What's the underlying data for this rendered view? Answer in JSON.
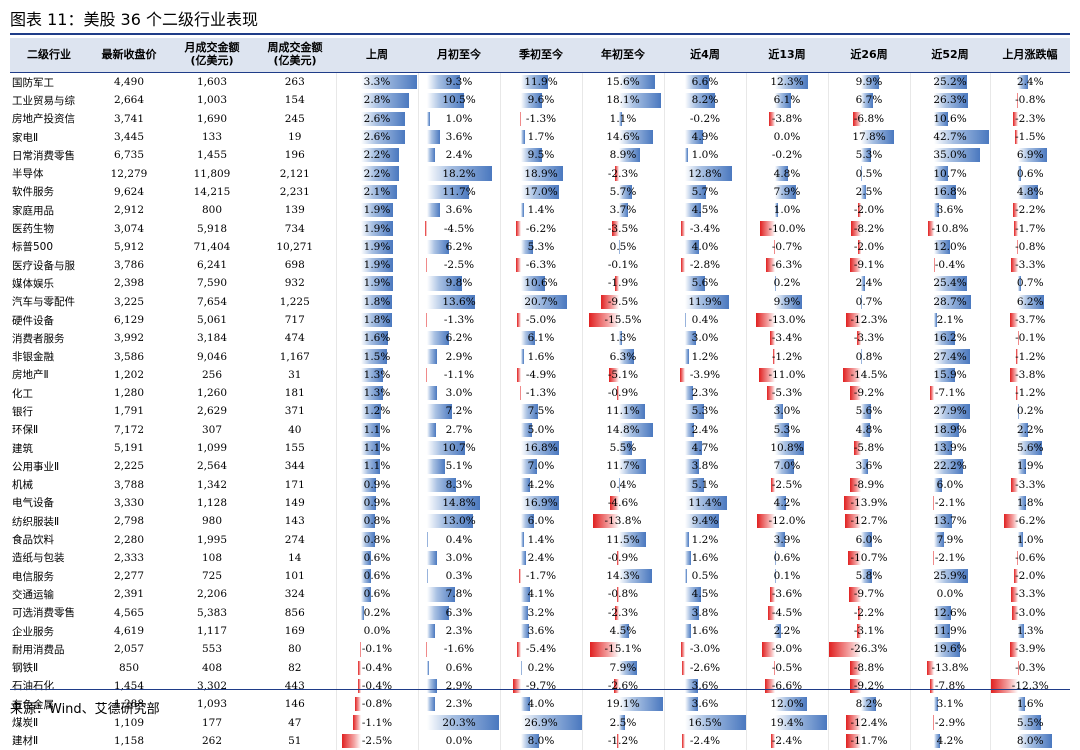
{
  "title": "图表 11：美股 36 个二级行业表现",
  "source": "来源：Wind、艾德研究部",
  "headers": [
    "二级行业",
    "最新收盘价",
    "月成交金额\n(亿美元)",
    "周成交金额\n(亿美元)",
    "上周",
    "月初至今",
    "季初至今",
    "年初至今",
    "近4周",
    "近13周",
    "近26周",
    "近52周",
    "上月涨跌幅"
  ],
  "colors": {
    "positive": "#4a78bf",
    "negative": "#e02020",
    "header_bg": "#dde4f0"
  },
  "rows": [
    {
      "name": "国防军工",
      "close": "4,490",
      "month_amt": "1,603",
      "week_amt": "263",
      "pct": [
        "3.3%",
        "9.3%",
        "11.9%",
        "15.6%",
        "6.6%",
        "12.3%",
        "9.9%",
        "25.2%",
        "2.4%"
      ]
    },
    {
      "name": "工业贸易与综",
      "close": "2,664",
      "month_amt": "1,003",
      "week_amt": "154",
      "pct": [
        "2.8%",
        "10.5%",
        "9.6%",
        "18.1%",
        "8.2%",
        "6.1%",
        "6.7%",
        "26.3%",
        "-0.8%"
      ]
    },
    {
      "name": "房地产投资信",
      "close": "3,741",
      "month_amt": "1,690",
      "week_amt": "245",
      "pct": [
        "2.6%",
        "1.0%",
        "-1.3%",
        "1.1%",
        "-0.2%",
        "-3.8%",
        "-6.8%",
        "10.6%",
        "-2.3%"
      ]
    },
    {
      "name": "家电Ⅱ",
      "close": "3,445",
      "month_amt": "133",
      "week_amt": "19",
      "pct": [
        "2.6%",
        "3.6%",
        "1.7%",
        "14.6%",
        "4.9%",
        "0.0%",
        "17.8%",
        "42.7%",
        "-1.5%"
      ]
    },
    {
      "name": "日常消费零售",
      "close": "6,735",
      "month_amt": "1,455",
      "week_amt": "196",
      "pct": [
        "2.2%",
        "2.4%",
        "9.5%",
        "8.9%",
        "1.0%",
        "-0.2%",
        "5.3%",
        "35.0%",
        "6.9%"
      ]
    },
    {
      "name": "半导体",
      "close": "12,279",
      "month_amt": "11,809",
      "week_amt": "2,121",
      "pct": [
        "2.2%",
        "18.2%",
        "18.9%",
        "-2.3%",
        "12.8%",
        "4.8%",
        "0.5%",
        "10.7%",
        "0.6%"
      ]
    },
    {
      "name": "软件服务",
      "close": "9,624",
      "month_amt": "14,215",
      "week_amt": "2,231",
      "pct": [
        "2.1%",
        "11.7%",
        "17.0%",
        "5.7%",
        "5.7%",
        "7.9%",
        "2.5%",
        "16.8%",
        "4.8%"
      ]
    },
    {
      "name": "家庭用品",
      "close": "2,912",
      "month_amt": "800",
      "week_amt": "139",
      "pct": [
        "1.9%",
        "3.6%",
        "1.4%",
        "3.7%",
        "4.5%",
        "1.0%",
        "-2.0%",
        "3.6%",
        "-2.2%"
      ]
    },
    {
      "name": "医药生物",
      "close": "3,074",
      "month_amt": "5,918",
      "week_amt": "734",
      "pct": [
        "1.9%",
        "-4.5%",
        "-6.2%",
        "-3.5%",
        "-3.4%",
        "-10.0%",
        "-8.2%",
        "-10.8%",
        "-1.7%"
      ]
    },
    {
      "name": "标普500",
      "close": "5,912",
      "month_amt": "71,404",
      "week_amt": "10,271",
      "pct": [
        "1.9%",
        "6.2%",
        "5.3%",
        "0.5%",
        "4.0%",
        "-0.7%",
        "-2.0%",
        "12.0%",
        "-0.8%"
      ]
    },
    {
      "name": "医疗设备与服",
      "close": "3,786",
      "month_amt": "6,241",
      "week_amt": "698",
      "pct": [
        "1.9%",
        "-2.5%",
        "-6.3%",
        "-0.1%",
        "-2.8%",
        "-6.3%",
        "-9.1%",
        "-0.4%",
        "-3.3%"
      ]
    },
    {
      "name": "媒体娱乐",
      "close": "2,398",
      "month_amt": "7,590",
      "week_amt": "932",
      "pct": [
        "1.9%",
        "9.8%",
        "10.6%",
        "-1.9%",
        "5.6%",
        "0.2%",
        "2.4%",
        "25.4%",
        "0.7%"
      ]
    },
    {
      "name": "汽车与零配件",
      "close": "3,225",
      "month_amt": "7,654",
      "week_amt": "1,225",
      "pct": [
        "1.8%",
        "13.6%",
        "20.7%",
        "-9.5%",
        "11.9%",
        "9.9%",
        "0.7%",
        "28.7%",
        "6.2%"
      ]
    },
    {
      "name": "硬件设备",
      "close": "6,129",
      "month_amt": "5,061",
      "week_amt": "717",
      "pct": [
        "1.8%",
        "-1.3%",
        "-5.0%",
        "-15.5%",
        "0.4%",
        "-13.0%",
        "-12.3%",
        "2.1%",
        "-3.7%"
      ]
    },
    {
      "name": "消费者服务",
      "close": "3,992",
      "month_amt": "3,184",
      "week_amt": "474",
      "pct": [
        "1.6%",
        "6.2%",
        "6.1%",
        "1.3%",
        "3.0%",
        "-3.4%",
        "-3.3%",
        "16.2%",
        "-0.1%"
      ]
    },
    {
      "name": "非银金融",
      "close": "3,586",
      "month_amt": "9,046",
      "week_amt": "1,167",
      "pct": [
        "1.5%",
        "2.9%",
        "1.6%",
        "6.3%",
        "1.2%",
        "-1.2%",
        "0.8%",
        "27.4%",
        "-1.2%"
      ]
    },
    {
      "name": "房地产Ⅱ",
      "close": "1,202",
      "month_amt": "256",
      "week_amt": "31",
      "pct": [
        "1.3%",
        "-1.1%",
        "-4.9%",
        "-5.1%",
        "-3.9%",
        "-11.0%",
        "-14.5%",
        "15.9%",
        "-3.8%"
      ]
    },
    {
      "name": "化工",
      "close": "1,280",
      "month_amt": "1,260",
      "week_amt": "181",
      "pct": [
        "1.3%",
        "3.0%",
        "-1.3%",
        "-0.9%",
        "2.3%",
        "-5.3%",
        "-9.2%",
        "-7.1%",
        "-1.2%"
      ]
    },
    {
      "name": "银行",
      "close": "1,791",
      "month_amt": "2,629",
      "week_amt": "371",
      "pct": [
        "1.2%",
        "7.2%",
        "7.5%",
        "11.1%",
        "5.3%",
        "3.0%",
        "5.6%",
        "27.9%",
        "0.2%"
      ]
    },
    {
      "name": "环保Ⅱ",
      "close": "7,172",
      "month_amt": "307",
      "week_amt": "40",
      "pct": [
        "1.1%",
        "2.7%",
        "5.0%",
        "14.8%",
        "2.4%",
        "5.3%",
        "4.8%",
        "18.9%",
        "2.2%"
      ]
    },
    {
      "name": "建筑",
      "close": "5,191",
      "month_amt": "1,099",
      "week_amt": "155",
      "pct": [
        "1.1%",
        "10.7%",
        "16.8%",
        "5.5%",
        "4.7%",
        "10.8%",
        "-5.8%",
        "13.9%",
        "5.6%"
      ]
    },
    {
      "name": "公用事业Ⅱ",
      "close": "2,225",
      "month_amt": "2,564",
      "week_amt": "344",
      "pct": [
        "1.1%",
        "5.1%",
        "7.0%",
        "11.7%",
        "3.8%",
        "7.0%",
        "3.6%",
        "22.2%",
        "1.9%"
      ]
    },
    {
      "name": "机械",
      "close": "3,788",
      "month_amt": "1,342",
      "week_amt": "171",
      "pct": [
        "0.9%",
        "8.3%",
        "4.2%",
        "0.4%",
        "5.1%",
        "-2.5%",
        "-8.9%",
        "6.0%",
        "-3.3%"
      ]
    },
    {
      "name": "电气设备",
      "close": "3,330",
      "month_amt": "1,128",
      "week_amt": "149",
      "pct": [
        "0.9%",
        "14.8%",
        "16.9%",
        "-4.6%",
        "11.4%",
        "4.2%",
        "-13.9%",
        "-2.1%",
        "1.8%"
      ]
    },
    {
      "name": "纺织服装Ⅱ",
      "close": "2,798",
      "month_amt": "980",
      "week_amt": "143",
      "pct": [
        "0.8%",
        "13.0%",
        "6.0%",
        "-13.8%",
        "9.4%",
        "-12.0%",
        "-12.7%",
        "13.7%",
        "-6.2%"
      ]
    },
    {
      "name": "食品饮料",
      "close": "2,280",
      "month_amt": "1,995",
      "week_amt": "274",
      "pct": [
        "0.8%",
        "0.4%",
        "1.4%",
        "11.5%",
        "1.2%",
        "3.9%",
        "6.0%",
        "7.9%",
        "1.0%"
      ]
    },
    {
      "name": "造纸与包装",
      "close": "2,333",
      "month_amt": "108",
      "week_amt": "14",
      "pct": [
        "0.6%",
        "3.0%",
        "2.4%",
        "-0.9%",
        "1.6%",
        "0.6%",
        "-10.7%",
        "-2.1%",
        "-0.6%"
      ]
    },
    {
      "name": "电信服务",
      "close": "2,277",
      "month_amt": "725",
      "week_amt": "101",
      "pct": [
        "0.6%",
        "0.3%",
        "-1.7%",
        "14.3%",
        "0.5%",
        "0.1%",
        "5.8%",
        "25.9%",
        "-2.0%"
      ]
    },
    {
      "name": "交通运输",
      "close": "2,391",
      "month_amt": "2,206",
      "week_amt": "324",
      "pct": [
        "0.6%",
        "7.8%",
        "4.1%",
        "-0.8%",
        "4.5%",
        "-3.6%",
        "-9.7%",
        "0.0%",
        "-3.3%"
      ]
    },
    {
      "name": "可选消费零售",
      "close": "4,565",
      "month_amt": "5,383",
      "week_amt": "856",
      "pct": [
        "0.2%",
        "6.3%",
        "3.2%",
        "-2.3%",
        "3.8%",
        "-4.5%",
        "-2.2%",
        "12.6%",
        "-3.0%"
      ]
    },
    {
      "name": "企业服务",
      "close": "4,619",
      "month_amt": "1,117",
      "week_amt": "169",
      "pct": [
        "0.0%",
        "2.3%",
        "3.6%",
        "4.5%",
        "1.6%",
        "2.2%",
        "-3.1%",
        "11.9%",
        "1.3%"
      ]
    },
    {
      "name": "耐用消费品",
      "close": "2,057",
      "month_amt": "553",
      "week_amt": "80",
      "pct": [
        "-0.1%",
        "-1.6%",
        "-5.4%",
        "-15.1%",
        "-3.0%",
        "-9.0%",
        "-26.3%",
        "19.6%",
        "-3.9%"
      ]
    },
    {
      "name": "钢铁Ⅱ",
      "close": "850",
      "month_amt": "408",
      "week_amt": "82",
      "pct": [
        "-0.4%",
        "0.6%",
        "0.2%",
        "7.9%",
        "-2.6%",
        "-0.5%",
        "-8.8%",
        "-13.8%",
        "-0.3%"
      ]
    },
    {
      "name": "石油石化",
      "close": "1,454",
      "month_amt": "3,302",
      "week_amt": "443",
      "pct": [
        "-0.4%",
        "2.9%",
        "-9.7%",
        "-2.6%",
        "3.6%",
        "-6.6%",
        "-9.2%",
        "-7.8%",
        "-12.3%"
      ]
    },
    {
      "name": "有色金属",
      "close": "1,288",
      "month_amt": "1,093",
      "week_amt": "146",
      "pct": [
        "-0.8%",
        "2.3%",
        "4.0%",
        "19.1%",
        "3.6%",
        "12.0%",
        "8.2%",
        "3.1%",
        "1.6%"
      ]
    },
    {
      "name": "煤炭Ⅱ",
      "close": "1,109",
      "month_amt": "177",
      "week_amt": "47",
      "pct": [
        "-1.1%",
        "20.3%",
        "26.9%",
        "2.5%",
        "16.5%",
        "19.4%",
        "-12.4%",
        "-2.9%",
        "5.5%"
      ]
    },
    {
      "name": "建材Ⅱ",
      "close": "1,158",
      "month_amt": "262",
      "week_amt": "51",
      "pct": [
        "-2.5%",
        "0.0%",
        "8.0%",
        "-1.2%",
        "-2.4%",
        "-2.4%",
        "-11.7%",
        "4.2%",
        "8.0%"
      ]
    }
  ]
}
